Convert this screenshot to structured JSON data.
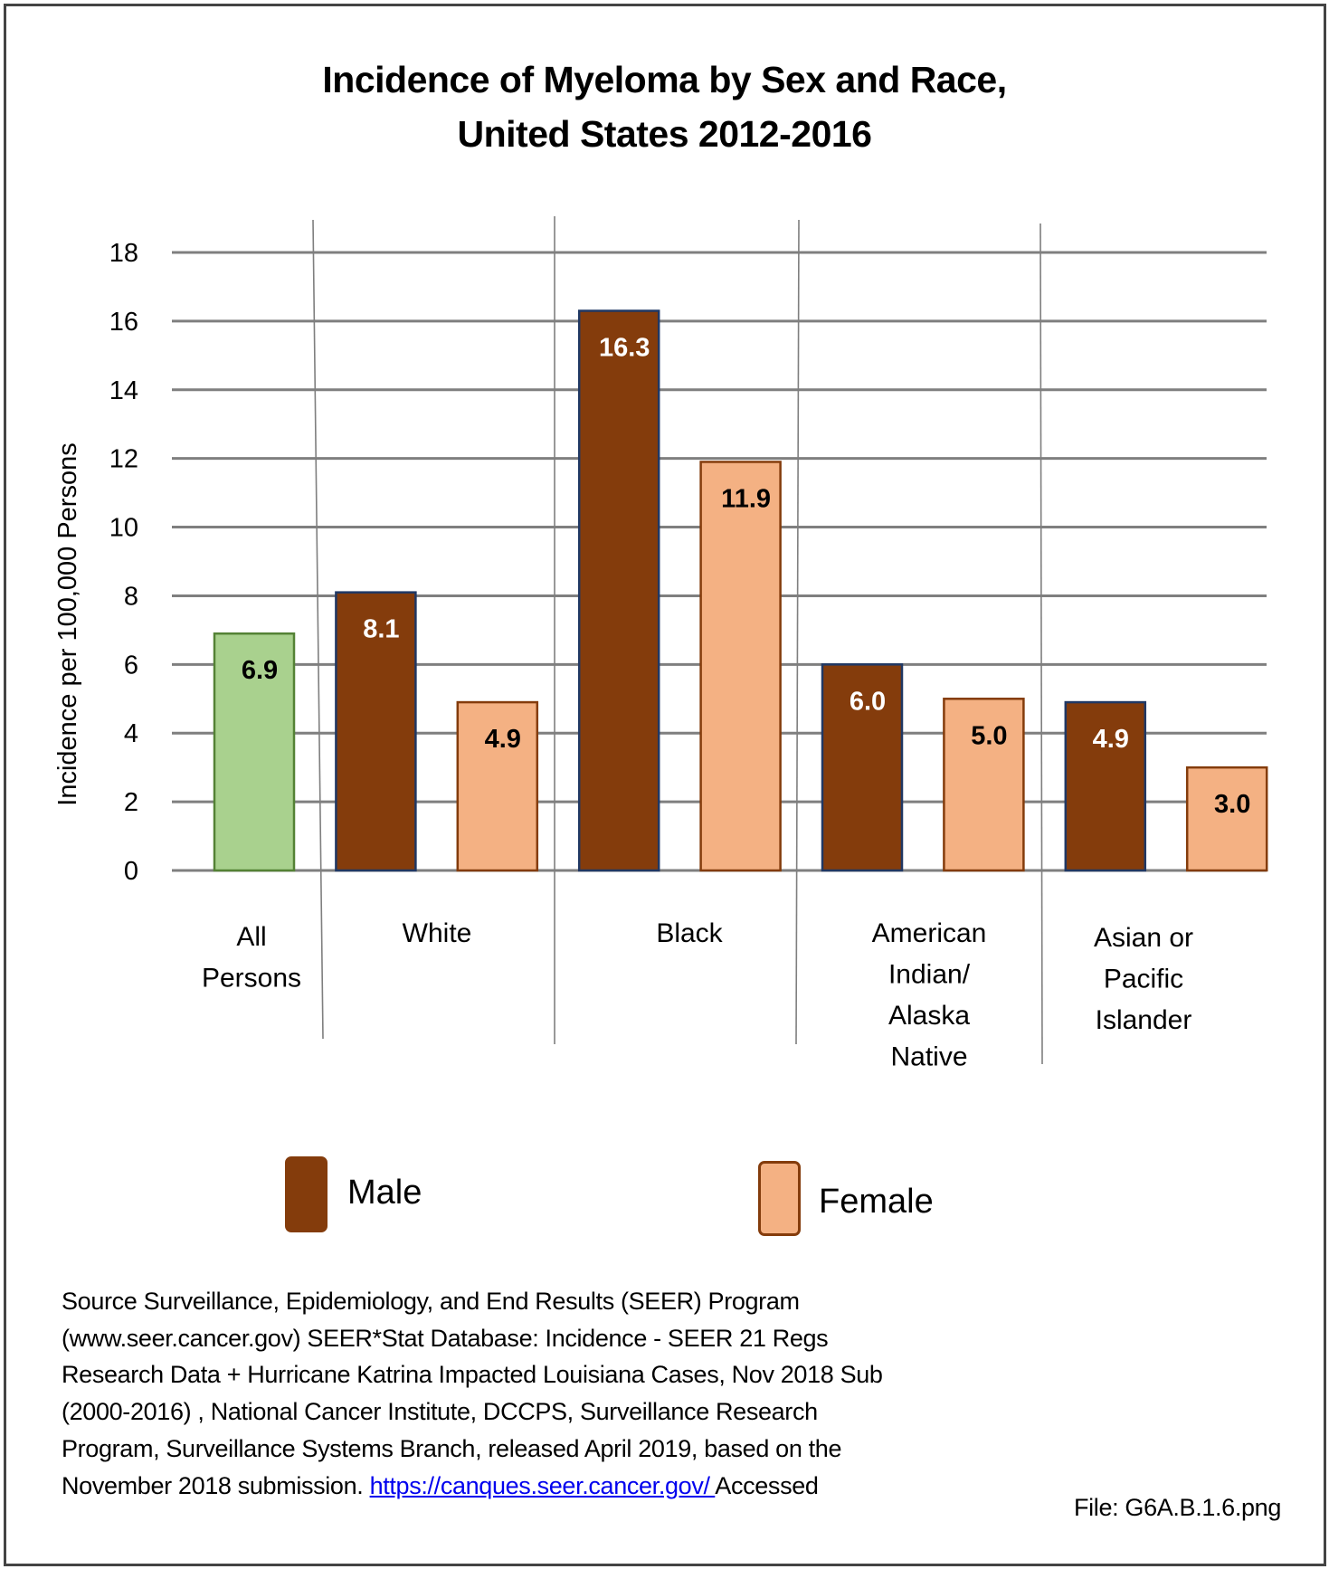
{
  "title_lines": [
    "Incidence of Myeloma by Sex and Race,",
    "United States 2012-2016"
  ],
  "colors": {
    "male_fill": "#843C0C",
    "male_stroke": "#203864",
    "female_fill": "#F4B183",
    "female_stroke": "#843C0C",
    "all_fill": "#A9D18E",
    "all_stroke": "#548235",
    "gridline": "#7F7F7F",
    "divider": "#7F7F7F",
    "link": "#0000EE"
  },
  "legend": {
    "male_label": "Male",
    "female_label": "Female"
  },
  "chart_data": {
    "type": "bar",
    "title": "Incidence of Myeloma by Sex and Race, United States 2012-2016",
    "xlabel": "",
    "ylabel": "Incidence per 100,000 Persons",
    "ylim": [
      0,
      18
    ],
    "yticks": [
      0,
      2,
      4,
      6,
      8,
      10,
      12,
      14,
      16,
      18
    ],
    "grid": true,
    "legend_position": "bottom",
    "categories": [
      {
        "label_lines": [
          "All",
          "Persons"
        ]
      },
      {
        "label_lines": [
          "White"
        ]
      },
      {
        "label_lines": [
          "Black"
        ]
      },
      {
        "label_lines": [
          "American",
          "Indian/",
          "Alaska",
          "Native"
        ]
      },
      {
        "label_lines": [
          "Asian or",
          "Pacific",
          "Islander"
        ]
      }
    ],
    "bars": [
      {
        "category": "All Persons",
        "series": "All",
        "value": 6.9,
        "label": "6.9"
      },
      {
        "category": "White",
        "series": "Male",
        "value": 8.1,
        "label": "8.1"
      },
      {
        "category": "White",
        "series": "Female",
        "value": 4.9,
        "label": "4.9"
      },
      {
        "category": "Black",
        "series": "Male",
        "value": 16.3,
        "label": "16.3"
      },
      {
        "category": "Black",
        "series": "Female",
        "value": 11.9,
        "label": "11.9"
      },
      {
        "category": "American Indian/Alaska Native",
        "series": "Male",
        "value": 6.0,
        "label": "6.0"
      },
      {
        "category": "American Indian/Alaska Native",
        "series": "Female",
        "value": 5.0,
        "label": "5.0"
      },
      {
        "category": "Asian or Pacific Islander",
        "series": "Male",
        "value": 4.9,
        "label": "4.9"
      },
      {
        "category": "Asian or Pacific Islander",
        "series": "Female",
        "value": 3.0,
        "label": "3.0"
      }
    ],
    "series": [
      {
        "name": "Male",
        "values": [
          null,
          8.1,
          16.3,
          6.0,
          4.9
        ]
      },
      {
        "name": "Female",
        "values": [
          null,
          4.9,
          11.9,
          5.0,
          3.0
        ]
      },
      {
        "name": "All",
        "values": [
          6.9,
          null,
          null,
          null,
          null
        ]
      }
    ]
  },
  "footnote": {
    "lines": [
      "Source Surveillance, Epidemiology, and End Results (SEER) Program",
      "(www.seer.cancer.gov) SEER*Stat Database: Incidence - SEER 21 Regs",
      "Research Data + Hurricane Katrina Impacted Louisiana Cases, Nov 2018 Sub",
      "(2000-2016) , National Cancer Institute, DCCPS, Surveillance Research",
      "Program, Surveillance Systems Branch, released April 2019, based on the"
    ],
    "last_line_prefix": "November 2018 submission. ",
    "link_text": "https://canques.seer.cancer.gov/ ",
    "last_line_suffix": "Accessed"
  },
  "filename": "File: G6A.B.1.6.png"
}
